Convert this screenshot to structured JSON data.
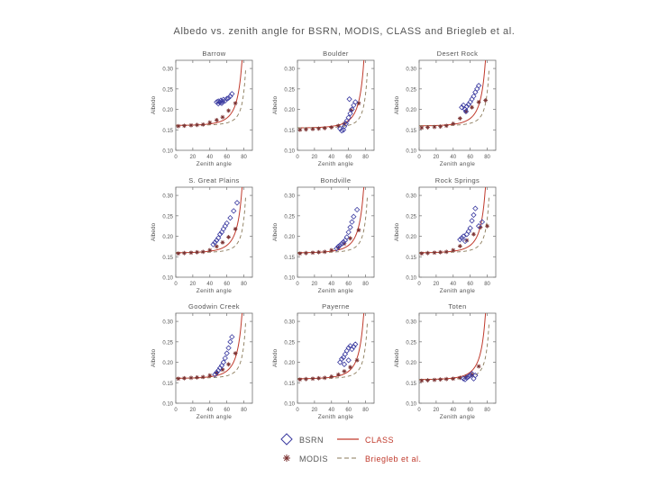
{
  "figure": {
    "title": "Albedo vs. zenith angle for BSRN, MODIS, CLASS and Briegleb et al.",
    "colors": {
      "class": "#c0392b",
      "briegleb": "#8a7a5a",
      "bsrn": "#3a3aa0",
      "modis": "#7a3030",
      "axis": "#707070",
      "text": "#555555",
      "legend_text": "#c0392b"
    }
  },
  "legend": {
    "bsrn": "BSRN",
    "class": "CLASS",
    "modis": "MODIS",
    "briegleb": "Briegleb et al."
  },
  "chart_data": [
    {
      "type": "scatter",
      "title": "Barrow",
      "xlabel": "Zenith angle",
      "ylabel": "Albedo",
      "xlim": [
        0,
        90
      ],
      "ylim": [
        0.1,
        0.32
      ],
      "xticks": [
        0,
        20,
        40,
        60,
        80
      ],
      "yticks": [
        0.1,
        0.15,
        0.2,
        0.25,
        0.3
      ],
      "class_curve": {
        "base": 0.161,
        "coef": 0.0016,
        "exp": 4,
        "xmax": 82
      },
      "briegleb_curve": {
        "base": 0.161,
        "coef": 0.0006,
        "exp": 4,
        "xmax": 82
      },
      "bsrn": [
        [
          48,
          0.218
        ],
        [
          50,
          0.22
        ],
        [
          52,
          0.217
        ],
        [
          53,
          0.222
        ],
        [
          55,
          0.219
        ],
        [
          56,
          0.224
        ],
        [
          58,
          0.221
        ],
        [
          60,
          0.226
        ],
        [
          62,
          0.228
        ],
        [
          64,
          0.232
        ],
        [
          66,
          0.238
        ],
        [
          50,
          0.214
        ],
        [
          54,
          0.215
        ]
      ],
      "modis": [
        [
          3,
          0.159
        ],
        [
          10,
          0.16
        ],
        [
          18,
          0.161
        ],
        [
          25,
          0.162
        ],
        [
          32,
          0.163
        ],
        [
          40,
          0.168
        ],
        [
          48,
          0.174
        ],
        [
          55,
          0.181
        ],
        [
          62,
          0.197
        ],
        [
          70,
          0.215
        ]
      ]
    },
    {
      "type": "scatter",
      "title": "Boulder",
      "xlabel": "Zenith angle",
      "ylabel": "Albedo",
      "xlim": [
        0,
        90
      ],
      "ylim": [
        0.1,
        0.32
      ],
      "xticks": [
        0,
        20,
        40,
        60,
        80
      ],
      "yticks": [
        0.1,
        0.15,
        0.2,
        0.25,
        0.3
      ],
      "class_curve": {
        "base": 0.155,
        "coef": 0.0016,
        "exp": 4,
        "xmax": 82
      },
      "briegleb_curve": {
        "base": 0.155,
        "coef": 0.0006,
        "exp": 4,
        "xmax": 82
      },
      "bsrn": [
        [
          50,
          0.153
        ],
        [
          52,
          0.148
        ],
        [
          54,
          0.15
        ],
        [
          55,
          0.158
        ],
        [
          57,
          0.165
        ],
        [
          58,
          0.172
        ],
        [
          60,
          0.18
        ],
        [
          62,
          0.19
        ],
        [
          64,
          0.2
        ],
        [
          66,
          0.21
        ],
        [
          68,
          0.218
        ],
        [
          61,
          0.225
        ]
      ],
      "modis": [
        [
          3,
          0.15
        ],
        [
          10,
          0.151
        ],
        [
          18,
          0.152
        ],
        [
          25,
          0.153
        ],
        [
          32,
          0.154
        ],
        [
          40,
          0.156
        ],
        [
          48,
          0.16
        ],
        [
          55,
          0.165
        ],
        [
          63,
          0.198
        ],
        [
          72,
          0.215
        ]
      ]
    },
    {
      "type": "scatter",
      "title": "Desert Rock",
      "xlabel": "Zenith angle",
      "ylabel": "Albedo",
      "xlim": [
        0,
        90
      ],
      "ylim": [
        0.1,
        0.32
      ],
      "xticks": [
        0,
        20,
        40,
        60,
        80
      ],
      "yticks": [
        0.1,
        0.15,
        0.2,
        0.25,
        0.3
      ],
      "class_curve": {
        "base": 0.16,
        "coef": 0.0016,
        "exp": 4,
        "xmax": 82
      },
      "briegleb_curve": {
        "base": 0.16,
        "coef": 0.0006,
        "exp": 4,
        "xmax": 82
      },
      "bsrn": [
        [
          50,
          0.205
        ],
        [
          52,
          0.21
        ],
        [
          54,
          0.2
        ],
        [
          56,
          0.207
        ],
        [
          58,
          0.212
        ],
        [
          60,
          0.218
        ],
        [
          62,
          0.225
        ],
        [
          64,
          0.232
        ],
        [
          66,
          0.242
        ],
        [
          68,
          0.25
        ],
        [
          70,
          0.258
        ],
        [
          55,
          0.195
        ]
      ],
      "modis": [
        [
          3,
          0.155
        ],
        [
          10,
          0.156
        ],
        [
          18,
          0.157
        ],
        [
          25,
          0.158
        ],
        [
          32,
          0.16
        ],
        [
          40,
          0.165
        ],
        [
          48,
          0.178
        ],
        [
          55,
          0.195
        ],
        [
          62,
          0.205
        ],
        [
          70,
          0.218
        ],
        [
          78,
          0.222
        ]
      ]
    },
    {
      "type": "scatter",
      "title": "S. Great Plains",
      "xlabel": "Zenith angle",
      "ylabel": "Albedo",
      "xlim": [
        0,
        90
      ],
      "ylim": [
        0.1,
        0.32
      ],
      "xticks": [
        0,
        20,
        40,
        60,
        80
      ],
      "yticks": [
        0.1,
        0.15,
        0.2,
        0.25,
        0.3
      ],
      "class_curve": {
        "base": 0.16,
        "coef": 0.0016,
        "exp": 4,
        "xmax": 82
      },
      "briegleb_curve": {
        "base": 0.16,
        "coef": 0.0006,
        "exp": 4,
        "xmax": 82
      },
      "bsrn": [
        [
          44,
          0.18
        ],
        [
          46,
          0.185
        ],
        [
          48,
          0.19
        ],
        [
          50,
          0.196
        ],
        [
          52,
          0.205
        ],
        [
          54,
          0.21
        ],
        [
          56,
          0.218
        ],
        [
          58,
          0.225
        ],
        [
          60,
          0.232
        ],
        [
          64,
          0.245
        ],
        [
          68,
          0.262
        ],
        [
          72,
          0.282
        ]
      ],
      "modis": [
        [
          3,
          0.158
        ],
        [
          10,
          0.159
        ],
        [
          18,
          0.16
        ],
        [
          25,
          0.161
        ],
        [
          32,
          0.162
        ],
        [
          40,
          0.166
        ],
        [
          48,
          0.175
        ],
        [
          55,
          0.185
        ],
        [
          62,
          0.198
        ],
        [
          70,
          0.218
        ]
      ]
    },
    {
      "type": "scatter",
      "title": "Bondville",
      "xlabel": "Zenith angle",
      "ylabel": "Albedo",
      "xlim": [
        0,
        90
      ],
      "ylim": [
        0.1,
        0.32
      ],
      "xticks": [
        0,
        20,
        40,
        60,
        80
      ],
      "yticks": [
        0.1,
        0.15,
        0.2,
        0.25,
        0.3
      ],
      "class_curve": {
        "base": 0.16,
        "coef": 0.0016,
        "exp": 4,
        "xmax": 82
      },
      "briegleb_curve": {
        "base": 0.16,
        "coef": 0.0006,
        "exp": 4,
        "xmax": 82
      },
      "bsrn": [
        [
          46,
          0.17
        ],
        [
          48,
          0.175
        ],
        [
          50,
          0.178
        ],
        [
          52,
          0.182
        ],
        [
          54,
          0.186
        ],
        [
          56,
          0.19
        ],
        [
          58,
          0.198
        ],
        [
          60,
          0.21
        ],
        [
          62,
          0.222
        ],
        [
          64,
          0.235
        ],
        [
          66,
          0.248
        ],
        [
          70,
          0.265
        ]
      ],
      "modis": [
        [
          3,
          0.158
        ],
        [
          10,
          0.159
        ],
        [
          18,
          0.16
        ],
        [
          25,
          0.161
        ],
        [
          32,
          0.162
        ],
        [
          40,
          0.166
        ],
        [
          48,
          0.172
        ],
        [
          55,
          0.182
        ],
        [
          62,
          0.195
        ],
        [
          72,
          0.215
        ]
      ]
    },
    {
      "type": "scatter",
      "title": "Rock Springs",
      "xlabel": "Zenith angle",
      "ylabel": "Albedo",
      "xlim": [
        0,
        90
      ],
      "ylim": [
        0.1,
        0.32
      ],
      "xticks": [
        0,
        20,
        40,
        60,
        80
      ],
      "yticks": [
        0.1,
        0.15,
        0.2,
        0.25,
        0.3
      ],
      "class_curve": {
        "base": 0.16,
        "coef": 0.0016,
        "exp": 4,
        "xmax": 82
      },
      "briegleb_curve": {
        "base": 0.16,
        "coef": 0.0006,
        "exp": 4,
        "xmax": 82
      },
      "bsrn": [
        [
          48,
          0.192
        ],
        [
          50,
          0.196
        ],
        [
          52,
          0.2
        ],
        [
          54,
          0.188
        ],
        [
          56,
          0.205
        ],
        [
          58,
          0.212
        ],
        [
          60,
          0.22
        ],
        [
          62,
          0.238
        ],
        [
          64,
          0.252
        ],
        [
          66,
          0.268
        ],
        [
          70,
          0.225
        ],
        [
          74,
          0.235
        ]
      ],
      "modis": [
        [
          3,
          0.158
        ],
        [
          10,
          0.159
        ],
        [
          18,
          0.16
        ],
        [
          25,
          0.161
        ],
        [
          32,
          0.162
        ],
        [
          40,
          0.166
        ],
        [
          48,
          0.176
        ],
        [
          56,
          0.19
        ],
        [
          64,
          0.205
        ],
        [
          72,
          0.222
        ],
        [
          80,
          0.225
        ]
      ]
    },
    {
      "type": "scatter",
      "title": "Goodwin Creek",
      "xlabel": "Zenith angle",
      "ylabel": "Albedo",
      "xlim": [
        0,
        90
      ],
      "ylim": [
        0.1,
        0.32
      ],
      "xticks": [
        0,
        20,
        40,
        60,
        80
      ],
      "yticks": [
        0.1,
        0.15,
        0.2,
        0.25,
        0.3
      ],
      "class_curve": {
        "base": 0.161,
        "coef": 0.0016,
        "exp": 4,
        "xmax": 82
      },
      "briegleb_curve": {
        "base": 0.161,
        "coef": 0.0006,
        "exp": 4,
        "xmax": 82
      },
      "bsrn": [
        [
          46,
          0.17
        ],
        [
          48,
          0.175
        ],
        [
          50,
          0.18
        ],
        [
          52,
          0.186
        ],
        [
          54,
          0.192
        ],
        [
          56,
          0.2
        ],
        [
          58,
          0.21
        ],
        [
          60,
          0.222
        ],
        [
          62,
          0.235
        ],
        [
          64,
          0.25
        ],
        [
          66,
          0.262
        ]
      ],
      "modis": [
        [
          3,
          0.16
        ],
        [
          10,
          0.161
        ],
        [
          18,
          0.162
        ],
        [
          25,
          0.163
        ],
        [
          32,
          0.164
        ],
        [
          40,
          0.168
        ],
        [
          48,
          0.174
        ],
        [
          55,
          0.182
        ],
        [
          62,
          0.195
        ],
        [
          70,
          0.222
        ]
      ]
    },
    {
      "type": "scatter",
      "title": "Payerne",
      "xlabel": "Zenith angle",
      "ylabel": "Albedo",
      "xlim": [
        0,
        90
      ],
      "ylim": [
        0.1,
        0.32
      ],
      "xticks": [
        0,
        20,
        40,
        60,
        80
      ],
      "yticks": [
        0.1,
        0.15,
        0.2,
        0.25,
        0.3
      ],
      "class_curve": {
        "base": 0.16,
        "coef": 0.0016,
        "exp": 4,
        "xmax": 82
      },
      "briegleb_curve": {
        "base": 0.16,
        "coef": 0.0006,
        "exp": 4,
        "xmax": 82
      },
      "bsrn": [
        [
          50,
          0.2
        ],
        [
          52,
          0.208
        ],
        [
          54,
          0.212
        ],
        [
          56,
          0.22
        ],
        [
          58,
          0.228
        ],
        [
          60,
          0.235
        ],
        [
          62,
          0.24
        ],
        [
          64,
          0.232
        ],
        [
          66,
          0.238
        ],
        [
          68,
          0.244
        ],
        [
          55,
          0.195
        ],
        [
          60,
          0.205
        ]
      ],
      "modis": [
        [
          3,
          0.158
        ],
        [
          10,
          0.159
        ],
        [
          18,
          0.16
        ],
        [
          25,
          0.161
        ],
        [
          32,
          0.162
        ],
        [
          40,
          0.165
        ],
        [
          48,
          0.17
        ],
        [
          55,
          0.178
        ],
        [
          62,
          0.188
        ],
        [
          70,
          0.205
        ]
      ]
    },
    {
      "type": "scatter",
      "title": "Toten",
      "xlabel": "Zenith angle",
      "ylabel": "Albedo",
      "xlim": [
        0,
        90
      ],
      "ylim": [
        0.1,
        0.32
      ],
      "xticks": [
        0,
        20,
        40,
        60,
        80
      ],
      "yticks": [
        0.1,
        0.15,
        0.2,
        0.25,
        0.3
      ],
      "class_curve": {
        "base": 0.158,
        "coef": 0.0016,
        "exp": 4,
        "xmax": 82
      },
      "briegleb_curve": {
        "base": 0.158,
        "coef": 0.0006,
        "exp": 4,
        "xmax": 82
      },
      "bsrn": [
        [
          52,
          0.16
        ],
        [
          54,
          0.158
        ],
        [
          56,
          0.162
        ],
        [
          58,
          0.165
        ],
        [
          60,
          0.168
        ],
        [
          62,
          0.172
        ],
        [
          64,
          0.16
        ],
        [
          66,
          0.168
        ]
      ],
      "modis": [
        [
          3,
          0.155
        ],
        [
          10,
          0.156
        ],
        [
          18,
          0.157
        ],
        [
          25,
          0.158
        ],
        [
          32,
          0.159
        ],
        [
          40,
          0.16
        ],
        [
          48,
          0.162
        ],
        [
          55,
          0.165
        ],
        [
          62,
          0.17
        ],
        [
          70,
          0.19
        ]
      ]
    }
  ]
}
